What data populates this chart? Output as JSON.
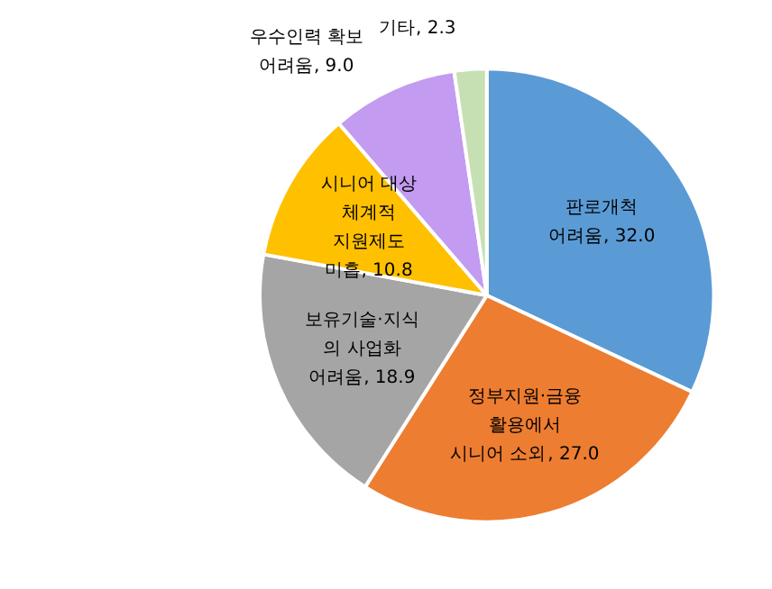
{
  "chart_data": {
    "type": "pie",
    "categories": [
      "판로개척\n어려움",
      "정부지원·금융\n활용에서\n시니어 소외",
      "보유기술·지식\n의 사업화\n어려움",
      "시니어 대상\n체계적\n지원제도\n미흡",
      "우수인력 확보\n어려움",
      "기타"
    ],
    "values": [
      32.0,
      27.0,
      18.9,
      10.8,
      9.0,
      2.3
    ],
    "colors": [
      "#5b9bd5",
      "#ed7d31",
      "#a5a5a5",
      "#ffc000",
      "#c39bf0",
      "#c6e0b4"
    ],
    "value_labels": [
      ", 32.0",
      ", 27.0",
      ", 18.9",
      ", 10.8",
      ", 9.0",
      ", 2.3"
    ]
  }
}
